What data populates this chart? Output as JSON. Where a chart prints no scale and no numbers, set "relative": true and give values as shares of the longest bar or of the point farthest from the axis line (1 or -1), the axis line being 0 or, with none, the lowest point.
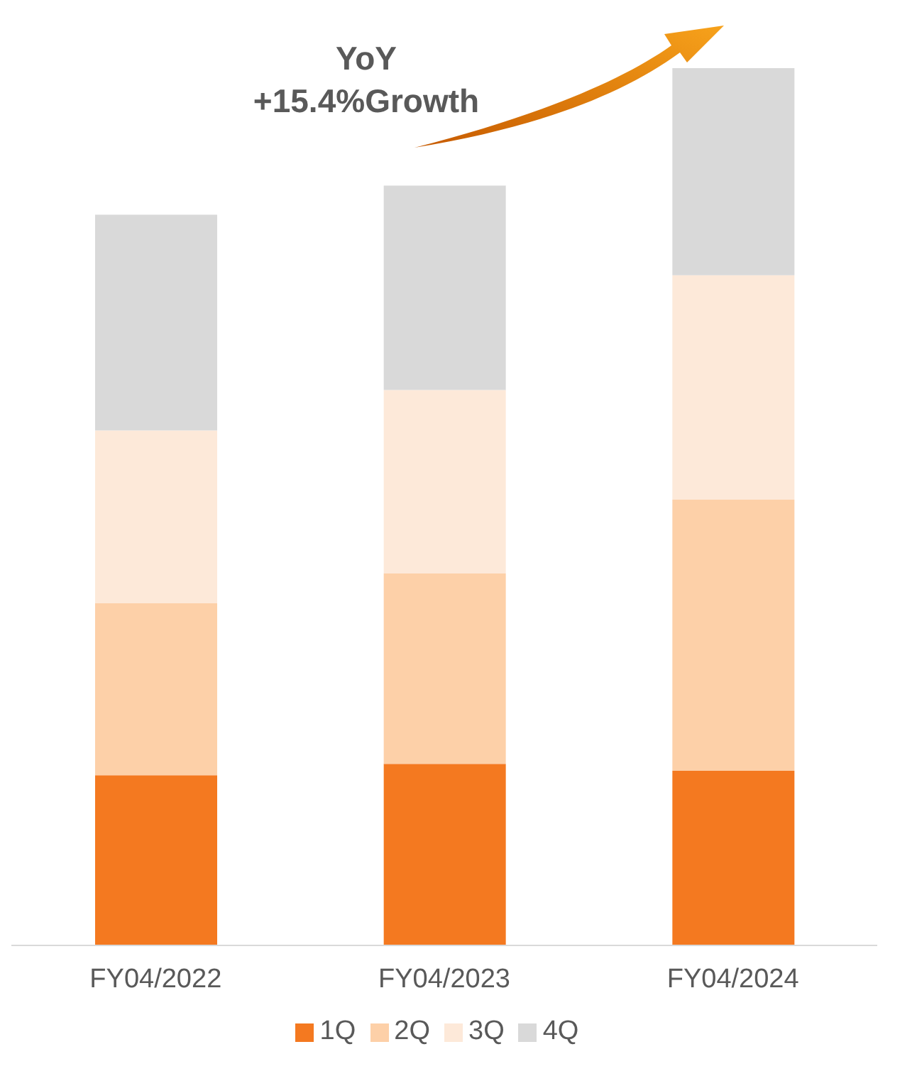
{
  "chart_data": {
    "type": "bar",
    "stacked": true,
    "relative": true,
    "categories": [
      "FY04/2022",
      "FY04/2023",
      "FY04/2024"
    ],
    "series": [
      {
        "name": "1Q",
        "color": "#f47920",
        "values": [
          0.194,
          0.207,
          0.199
        ]
      },
      {
        "name": "2Q",
        "color": "#fdd0a8",
        "values": [
          0.196,
          0.217,
          0.309
        ]
      },
      {
        "name": "3Q",
        "color": "#fde9d9",
        "values": [
          0.197,
          0.209,
          0.256
        ]
      },
      {
        "name": "4Q",
        "color": "#d9d9d9",
        "values": [
          0.246,
          0.233,
          0.236
        ]
      }
    ],
    "annotations": [
      "YoY",
      "+15.4%Growth"
    ],
    "legend": "bottom"
  }
}
